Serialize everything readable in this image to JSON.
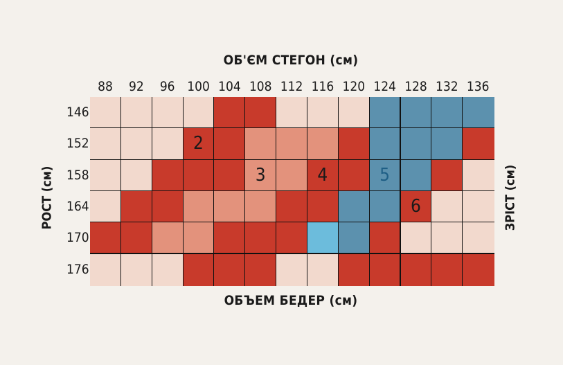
{
  "chart_data": {
    "type": "heatmap",
    "title": "ОБ'ЄМ СТЕГОН (см)",
    "xlabel": "ОБЪЕМ БЕДЕР (см)",
    "ylabel": "РОСТ (см)",
    "ylabel_right": "ЗРІСТ (см)",
    "x": [
      "88",
      "92",
      "96",
      "100",
      "104",
      "108",
      "112",
      "116",
      "120",
      "124",
      "128",
      "132",
      "136"
    ],
    "y": [
      "146",
      "152",
      "158",
      "164",
      "170",
      "176"
    ],
    "colors": {
      "L": "#f2d9cd",
      "M": "#e3927c",
      "R": "#c83a2b",
      "B": "#5c91ae",
      "C": "#6cbcdc"
    },
    "cells": [
      [
        "L",
        "L",
        "L",
        "L",
        "R",
        "R",
        "L",
        "L",
        "L",
        "B",
        "B",
        "B",
        "B"
      ],
      [
        "L",
        "L",
        "L",
        "R",
        "R",
        "M",
        "M",
        "M",
        "R",
        "B",
        "B",
        "B",
        "R"
      ],
      [
        "L",
        "L",
        "R",
        "R",
        "R",
        "M",
        "M",
        "R",
        "R",
        "B",
        "B",
        "R",
        "L"
      ],
      [
        "L",
        "R",
        "R",
        "M",
        "M",
        "M",
        "R",
        "R",
        "B",
        "B",
        "R",
        "L",
        "L"
      ],
      [
        "R",
        "R",
        "M",
        "M",
        "R",
        "R",
        "R",
        "C",
        "B",
        "R",
        "L",
        "L",
        "L"
      ],
      [
        "L",
        "L",
        "L",
        "R",
        "R",
        "R",
        "L",
        "L",
        "R",
        "R",
        "R",
        "R",
        "R"
      ]
    ],
    "annotations": [
      {
        "x": "100",
        "y": "152",
        "text": "2"
      },
      {
        "x": "108",
        "y": "158",
        "text": "3"
      },
      {
        "x": "116",
        "y": "158",
        "text": "4"
      },
      {
        "x": "124",
        "y": "158",
        "text": "5",
        "color": "#1f5f86"
      },
      {
        "x": "128",
        "y": "164",
        "text": "6"
      }
    ]
  }
}
